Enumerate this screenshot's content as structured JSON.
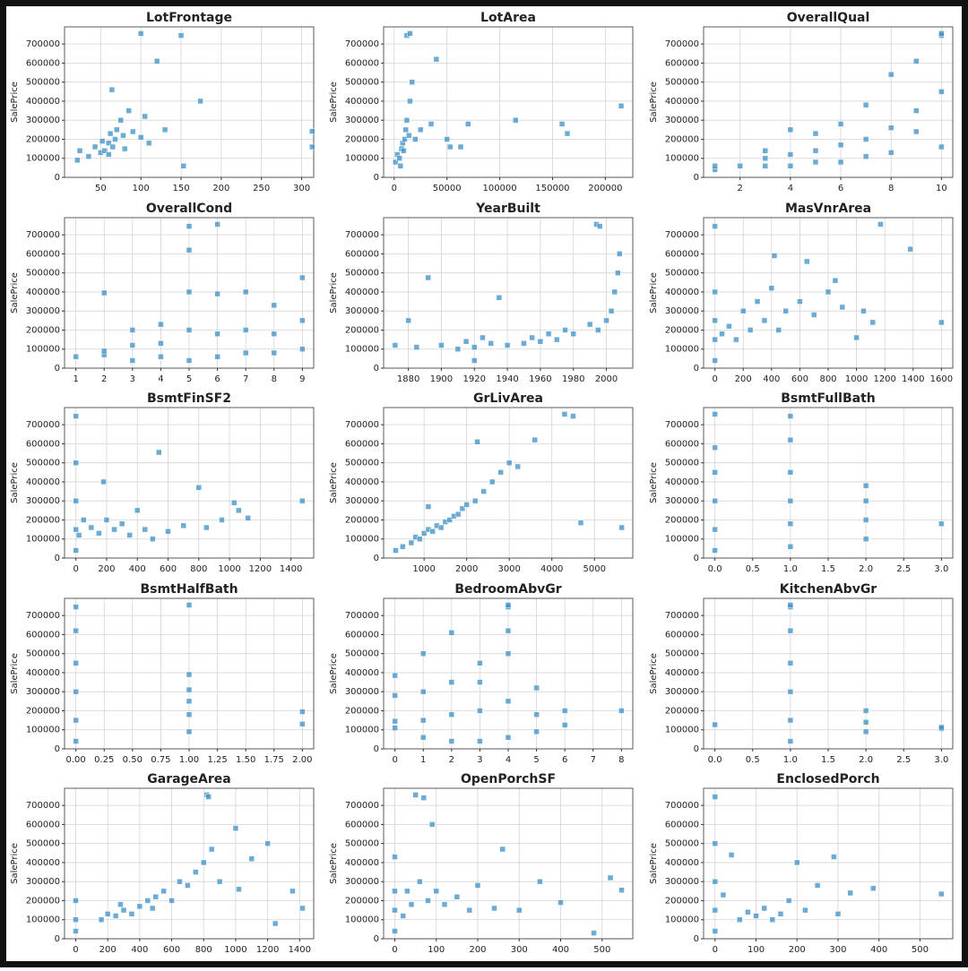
{
  "chart_data": [
    {
      "type": "scatter",
      "title": "LotFrontage",
      "y_label": "SalePrice",
      "color": "#3a8fc5",
      "grid": true,
      "x": [
        21,
        24,
        35,
        43,
        50,
        52,
        55,
        60,
        60,
        62,
        65,
        68,
        70,
        75,
        78,
        80,
        85,
        90,
        100,
        105,
        110,
        130,
        150,
        153,
        174,
        313,
        313,
        64,
        100,
        120
      ],
      "y": [
        90000,
        140000,
        110000,
        160000,
        130000,
        190000,
        140000,
        120000,
        180000,
        230000,
        160000,
        200000,
        250000,
        300000,
        220000,
        150000,
        350000,
        240000,
        210000,
        320000,
        180000,
        250000,
        745000,
        60000,
        400000,
        160000,
        242000,
        460000,
        755000,
        610000
      ],
      "xlim": [
        5,
        315
      ],
      "xticks": [
        50,
        100,
        150,
        200,
        250,
        300
      ],
      "ylim": [
        0,
        790000
      ],
      "yticks": [
        0,
        100000,
        200000,
        300000,
        400000,
        500000,
        600000,
        700000
      ]
    },
    {
      "type": "scatter",
      "title": "LotArea",
      "y_label": "SalePrice",
      "color": "#3a8fc5",
      "grid": true,
      "x": [
        1300,
        3000,
        5000,
        7000,
        8000,
        9000,
        10000,
        11000,
        12000,
        14000,
        15000,
        17000,
        20000,
        25000,
        35000,
        40000,
        50000,
        53000,
        63000,
        70000,
        115000,
        159000,
        164000,
        215000,
        12000,
        15000,
        6000
      ],
      "y": [
        80000,
        120000,
        100000,
        150000,
        180000,
        140000,
        200000,
        250000,
        300000,
        220000,
        400000,
        500000,
        200000,
        250000,
        280000,
        620000,
        200000,
        160000,
        160000,
        280000,
        300000,
        280000,
        230000,
        375000,
        745000,
        755000,
        60000
      ],
      "xlim": [
        -10000,
        226000
      ],
      "xticks": [
        0,
        50000,
        100000,
        150000,
        200000
      ],
      "ylim": [
        0,
        790000
      ],
      "yticks": [
        0,
        100000,
        200000,
        300000,
        400000,
        500000,
        600000,
        700000
      ]
    },
    {
      "type": "scatter",
      "title": "OverallQual",
      "y_label": "SalePrice",
      "color": "#3a8fc5",
      "grid": true,
      "x": [
        1,
        1,
        2,
        3,
        3,
        3,
        4,
        4,
        4,
        5,
        5,
        5,
        6,
        6,
        6,
        7,
        7,
        7,
        8,
        8,
        8,
        9,
        9,
        9,
        10,
        10,
        10,
        10
      ],
      "y": [
        40000,
        60000,
        60000,
        60000,
        100000,
        140000,
        60000,
        120000,
        250000,
        80000,
        140000,
        230000,
        80000,
        170000,
        280000,
        110000,
        200000,
        380000,
        130000,
        260000,
        540000,
        240000,
        350000,
        610000,
        160000,
        450000,
        745000,
        755000
      ],
      "xlim": [
        0.55,
        10.45
      ],
      "xticks": [
        2,
        4,
        6,
        8,
        10
      ],
      "ylim": [
        0,
        790000
      ],
      "yticks": [
        0,
        100000,
        200000,
        300000,
        400000,
        500000,
        600000,
        700000
      ]
    },
    {
      "type": "scatter",
      "title": "OverallCond",
      "y_label": "SalePrice",
      "color": "#3a8fc5",
      "grid": true,
      "x": [
        1,
        2,
        2,
        2,
        3,
        3,
        3,
        4,
        4,
        4,
        5,
        5,
        5,
        5,
        5,
        6,
        6,
        6,
        6,
        7,
        7,
        7,
        8,
        8,
        8,
        9,
        9,
        9
      ],
      "y": [
        60000,
        70000,
        90000,
        395000,
        40000,
        120000,
        200000,
        60000,
        130000,
        230000,
        40000,
        200000,
        400000,
        620000,
        745000,
        60000,
        180000,
        390000,
        755000,
        80000,
        200000,
        400000,
        80000,
        180000,
        330000,
        100000,
        250000,
        475000
      ],
      "xlim": [
        0.6,
        9.4
      ],
      "xticks": [
        1,
        2,
        3,
        4,
        5,
        6,
        7,
        8,
        9
      ],
      "ylim": [
        0,
        790000
      ],
      "yticks": [
        0,
        100000,
        200000,
        300000,
        400000,
        500000,
        600000,
        700000
      ]
    },
    {
      "type": "scatter",
      "title": "YearBuilt",
      "y_label": "SalePrice",
      "color": "#3a8fc5",
      "grid": true,
      "x": [
        1872,
        1880,
        1885,
        1892,
        1900,
        1910,
        1915,
        1920,
        1925,
        1930,
        1935,
        1940,
        1950,
        1955,
        1960,
        1965,
        1970,
        1975,
        1980,
        1990,
        1995,
        2000,
        2003,
        2005,
        2007,
        1994,
        1996,
        2008,
        1920
      ],
      "y": [
        120000,
        250000,
        110000,
        475000,
        120000,
        100000,
        140000,
        110000,
        160000,
        130000,
        370000,
        120000,
        130000,
        160000,
        140000,
        180000,
        150000,
        200000,
        180000,
        230000,
        200000,
        250000,
        300000,
        400000,
        500000,
        755000,
        745000,
        600000,
        40000
      ],
      "xlim": [
        1865,
        2016
      ],
      "xticks": [
        1880,
        1900,
        1920,
        1940,
        1960,
        1980,
        2000
      ],
      "ylim": [
        0,
        790000
      ],
      "yticks": [
        0,
        100000,
        200000,
        300000,
        400000,
        500000,
        600000,
        700000
      ]
    },
    {
      "type": "scatter",
      "title": "MasVnrArea",
      "y_label": "SalePrice",
      "color": "#3a8fc5",
      "grid": true,
      "x": [
        0,
        0,
        0,
        0,
        0,
        50,
        100,
        150,
        200,
        250,
        300,
        350,
        400,
        450,
        500,
        600,
        650,
        700,
        800,
        850,
        900,
        1000,
        1050,
        1115,
        1170,
        1380,
        1600,
        420
      ],
      "y": [
        40000,
        150000,
        250000,
        400000,
        745000,
        180000,
        220000,
        150000,
        300000,
        200000,
        350000,
        250000,
        420000,
        200000,
        300000,
        350000,
        560000,
        280000,
        400000,
        460000,
        320000,
        160000,
        300000,
        240000,
        755000,
        625000,
        240000,
        590000
      ],
      "xlim": [
        -80,
        1680
      ],
      "xticks": [
        0,
        200,
        400,
        600,
        800,
        1000,
        1200,
        1400,
        1600
      ],
      "ylim": [
        0,
        790000
      ],
      "yticks": [
        0,
        100000,
        200000,
        300000,
        400000,
        500000,
        600000,
        700000
      ]
    },
    {
      "type": "scatter",
      "title": "BsmtFinSF2",
      "y_label": "SalePrice",
      "color": "#3a8fc5",
      "grid": true,
      "x": [
        0,
        0,
        0,
        0,
        0,
        20,
        50,
        100,
        150,
        180,
        200,
        250,
        300,
        350,
        400,
        450,
        500,
        540,
        600,
        700,
        800,
        850,
        950,
        1030,
        1060,
        1120,
        1474
      ],
      "y": [
        40000,
        150000,
        300000,
        500000,
        745000,
        120000,
        200000,
        160000,
        130000,
        400000,
        200000,
        150000,
        180000,
        120000,
        250000,
        150000,
        100000,
        555000,
        140000,
        170000,
        370000,
        160000,
        200000,
        290000,
        250000,
        210000,
        300000
      ],
      "xlim": [
        -74,
        1548
      ],
      "xticks": [
        0,
        200,
        400,
        600,
        800,
        1000,
        1200,
        1400
      ],
      "ylim": [
        0,
        790000
      ],
      "yticks": [
        0,
        100000,
        200000,
        300000,
        400000,
        500000,
        600000,
        700000
      ]
    },
    {
      "type": "scatter",
      "title": "GrLivArea",
      "y_label": "SalePrice",
      "color": "#3a8fc5",
      "grid": true,
      "x": [
        334,
        500,
        700,
        800,
        900,
        1000,
        1100,
        1200,
        1300,
        1400,
        1500,
        1600,
        1700,
        1800,
        1900,
        2000,
        2200,
        2400,
        2600,
        2800,
        3000,
        3200,
        3600,
        4300,
        4500,
        4680,
        5640,
        2250,
        1100
      ],
      "y": [
        40000,
        60000,
        80000,
        110000,
        100000,
        130000,
        150000,
        140000,
        170000,
        160000,
        190000,
        200000,
        220000,
        230000,
        260000,
        280000,
        300000,
        350000,
        400000,
        450000,
        500000,
        480000,
        620000,
        755000,
        745000,
        185000,
        160000,
        610000,
        270000
      ],
      "xlim": [
        50,
        5900
      ],
      "xticks": [
        1000,
        2000,
        3000,
        4000,
        5000
      ],
      "ylim": [
        0,
        790000
      ],
      "yticks": [
        0,
        100000,
        200000,
        300000,
        400000,
        500000,
        600000,
        700000
      ]
    },
    {
      "type": "scatter",
      "title": "BsmtFullBath",
      "y_label": "SalePrice",
      "color": "#3a8fc5",
      "grid": true,
      "x": [
        0,
        0,
        0,
        0,
        0,
        0,
        1,
        1,
        1,
        1,
        1,
        1,
        2,
        2,
        2,
        2,
        3
      ],
      "y": [
        40000,
        150000,
        300000,
        450000,
        580000,
        755000,
        60000,
        180000,
        300000,
        450000,
        620000,
        745000,
        100000,
        200000,
        300000,
        380000,
        180000
      ],
      "xlim": [
        -0.15,
        3.15
      ],
      "xticks": [
        {
          "value": 0,
          "label": "0.0"
        },
        0.5,
        {
          "value": 1,
          "label": "1.0"
        },
        1.5,
        {
          "value": 2,
          "label": "2.0"
        },
        2.5,
        {
          "value": 3,
          "label": "3.0"
        }
      ],
      "ylim": [
        0,
        790000
      ],
      "yticks": [
        0,
        100000,
        200000,
        300000,
        400000,
        500000,
        600000,
        700000
      ]
    },
    {
      "type": "scatter",
      "title": "BsmtHalfBath",
      "y_label": "SalePrice",
      "color": "#3a8fc5",
      "grid": true,
      "x": [
        0,
        0,
        0,
        0,
        0,
        0,
        1,
        1,
        1,
        1,
        1,
        1,
        2,
        2
      ],
      "y": [
        40000,
        150000,
        300000,
        450000,
        620000,
        745000,
        90000,
        180000,
        250000,
        310000,
        390000,
        755000,
        130000,
        195000
      ],
      "xlim": [
        -0.1,
        2.1
      ],
      "xticks": [
        {
          "value": 0,
          "label": "0.00"
        },
        0.25,
        {
          "value": 0.5,
          "label": "0.50"
        },
        0.75,
        {
          "value": 1,
          "label": "1.00"
        },
        1.25,
        {
          "value": 1.5,
          "label": "1.50"
        },
        1.75,
        {
          "value": 2,
          "label": "2.00"
        }
      ],
      "ylim": [
        0,
        790000
      ],
      "yticks": [
        0,
        100000,
        200000,
        300000,
        400000,
        500000,
        600000,
        700000
      ]
    },
    {
      "type": "scatter",
      "title": "BedroomAbvGr",
      "y_label": "SalePrice",
      "color": "#3a8fc5",
      "grid": true,
      "x": [
        0,
        0,
        0,
        0,
        1,
        1,
        1,
        1,
        2,
        2,
        2,
        2,
        3,
        3,
        3,
        3,
        4,
        4,
        4,
        4,
        4,
        4,
        5,
        5,
        5,
        6,
        6,
        8
      ],
      "y": [
        110000,
        145000,
        280000,
        385000,
        60000,
        150000,
        300000,
        500000,
        40000,
        180000,
        350000,
        610000,
        40000,
        200000,
        350000,
        450000,
        60000,
        250000,
        500000,
        620000,
        745000,
        755000,
        90000,
        180000,
        320000,
        125000,
        200000,
        200000
      ],
      "xlim": [
        -0.4,
        8.4
      ],
      "xticks": [
        0,
        1,
        2,
        3,
        4,
        5,
        6,
        7,
        8
      ],
      "ylim": [
        0,
        790000
      ],
      "yticks": [
        0,
        100000,
        200000,
        300000,
        400000,
        500000,
        600000,
        700000
      ]
    },
    {
      "type": "scatter",
      "title": "KitchenAbvGr",
      "y_label": "SalePrice",
      "color": "#3a8fc5",
      "grid": true,
      "x": [
        0,
        1,
        1,
        1,
        1,
        1,
        1,
        1,
        2,
        2,
        2,
        3,
        3
      ],
      "y": [
        127000,
        40000,
        150000,
        300000,
        450000,
        620000,
        745000,
        755000,
        90000,
        140000,
        200000,
        106000,
        113000
      ],
      "xlim": [
        -0.15,
        3.15
      ],
      "xticks": [
        {
          "value": 0,
          "label": "0.0"
        },
        0.5,
        {
          "value": 1,
          "label": "1.0"
        },
        1.5,
        {
          "value": 2,
          "label": "2.0"
        },
        2.5,
        {
          "value": 3,
          "label": "3.0"
        }
      ],
      "ylim": [
        0,
        790000
      ],
      "yticks": [
        0,
        100000,
        200000,
        300000,
        400000,
        500000,
        600000,
        700000
      ]
    },
    {
      "type": "scatter",
      "title": "GarageArea",
      "y_label": "SalePrice",
      "color": "#3a8fc5",
      "grid": true,
      "x": [
        0,
        0,
        0,
        160,
        200,
        250,
        280,
        300,
        350,
        400,
        450,
        480,
        500,
        550,
        600,
        650,
        700,
        750,
        800,
        820,
        830,
        850,
        900,
        1000,
        1020,
        1100,
        1200,
        1248,
        1356,
        1418
      ],
      "y": [
        40000,
        100000,
        200000,
        100000,
        130000,
        120000,
        180000,
        150000,
        130000,
        170000,
        200000,
        160000,
        220000,
        250000,
        200000,
        300000,
        280000,
        350000,
        400000,
        755000,
        745000,
        470000,
        300000,
        580000,
        260000,
        420000,
        500000,
        80000,
        250000,
        160000
      ],
      "xlim": [
        -70,
        1488
      ],
      "xticks": [
        0,
        200,
        400,
        600,
        800,
        1000,
        1200,
        1400
      ],
      "ylim": [
        0,
        790000
      ],
      "yticks": [
        0,
        100000,
        200000,
        300000,
        400000,
        500000,
        600000,
        700000
      ]
    },
    {
      "type": "scatter",
      "title": "OpenPorchSF",
      "y_label": "SalePrice",
      "color": "#3a8fc5",
      "grid": true,
      "x": [
        0,
        0,
        0,
        0,
        20,
        30,
        40,
        50,
        60,
        70,
        80,
        100,
        120,
        150,
        180,
        200,
        240,
        260,
        300,
        350,
        400,
        480,
        520,
        547,
        90
      ],
      "y": [
        40000,
        150000,
        250000,
        430000,
        120000,
        250000,
        180000,
        755000,
        300000,
        740000,
        200000,
        250000,
        180000,
        220000,
        150000,
        280000,
        160000,
        470000,
        150000,
        300000,
        190000,
        30000,
        320000,
        255000,
        600000
      ],
      "xlim": [
        -27,
        574
      ],
      "xticks": [
        0,
        100,
        200,
        300,
        400,
        500
      ],
      "ylim": [
        0,
        790000
      ],
      "yticks": [
        0,
        100000,
        200000,
        300000,
        400000,
        500000,
        600000,
        700000
      ]
    },
    {
      "type": "scatter",
      "title": "EnclosedPorch",
      "y_label": "SalePrice",
      "color": "#3a8fc5",
      "grid": true,
      "x": [
        0,
        0,
        0,
        0,
        0,
        20,
        40,
        60,
        80,
        100,
        120,
        140,
        160,
        180,
        200,
        220,
        250,
        290,
        300,
        330,
        386,
        552
      ],
      "y": [
        40000,
        150000,
        300000,
        500000,
        745000,
        230000,
        440000,
        100000,
        140000,
        120000,
        160000,
        100000,
        130000,
        200000,
        400000,
        150000,
        280000,
        430000,
        130000,
        240000,
        265000,
        235000
      ],
      "xlim": [
        -28,
        580
      ],
      "xticks": [
        0,
        100,
        200,
        300,
        400,
        500
      ],
      "ylim": [
        0,
        790000
      ],
      "yticks": [
        0,
        100000,
        200000,
        300000,
        400000,
        500000,
        600000,
        700000
      ]
    }
  ]
}
